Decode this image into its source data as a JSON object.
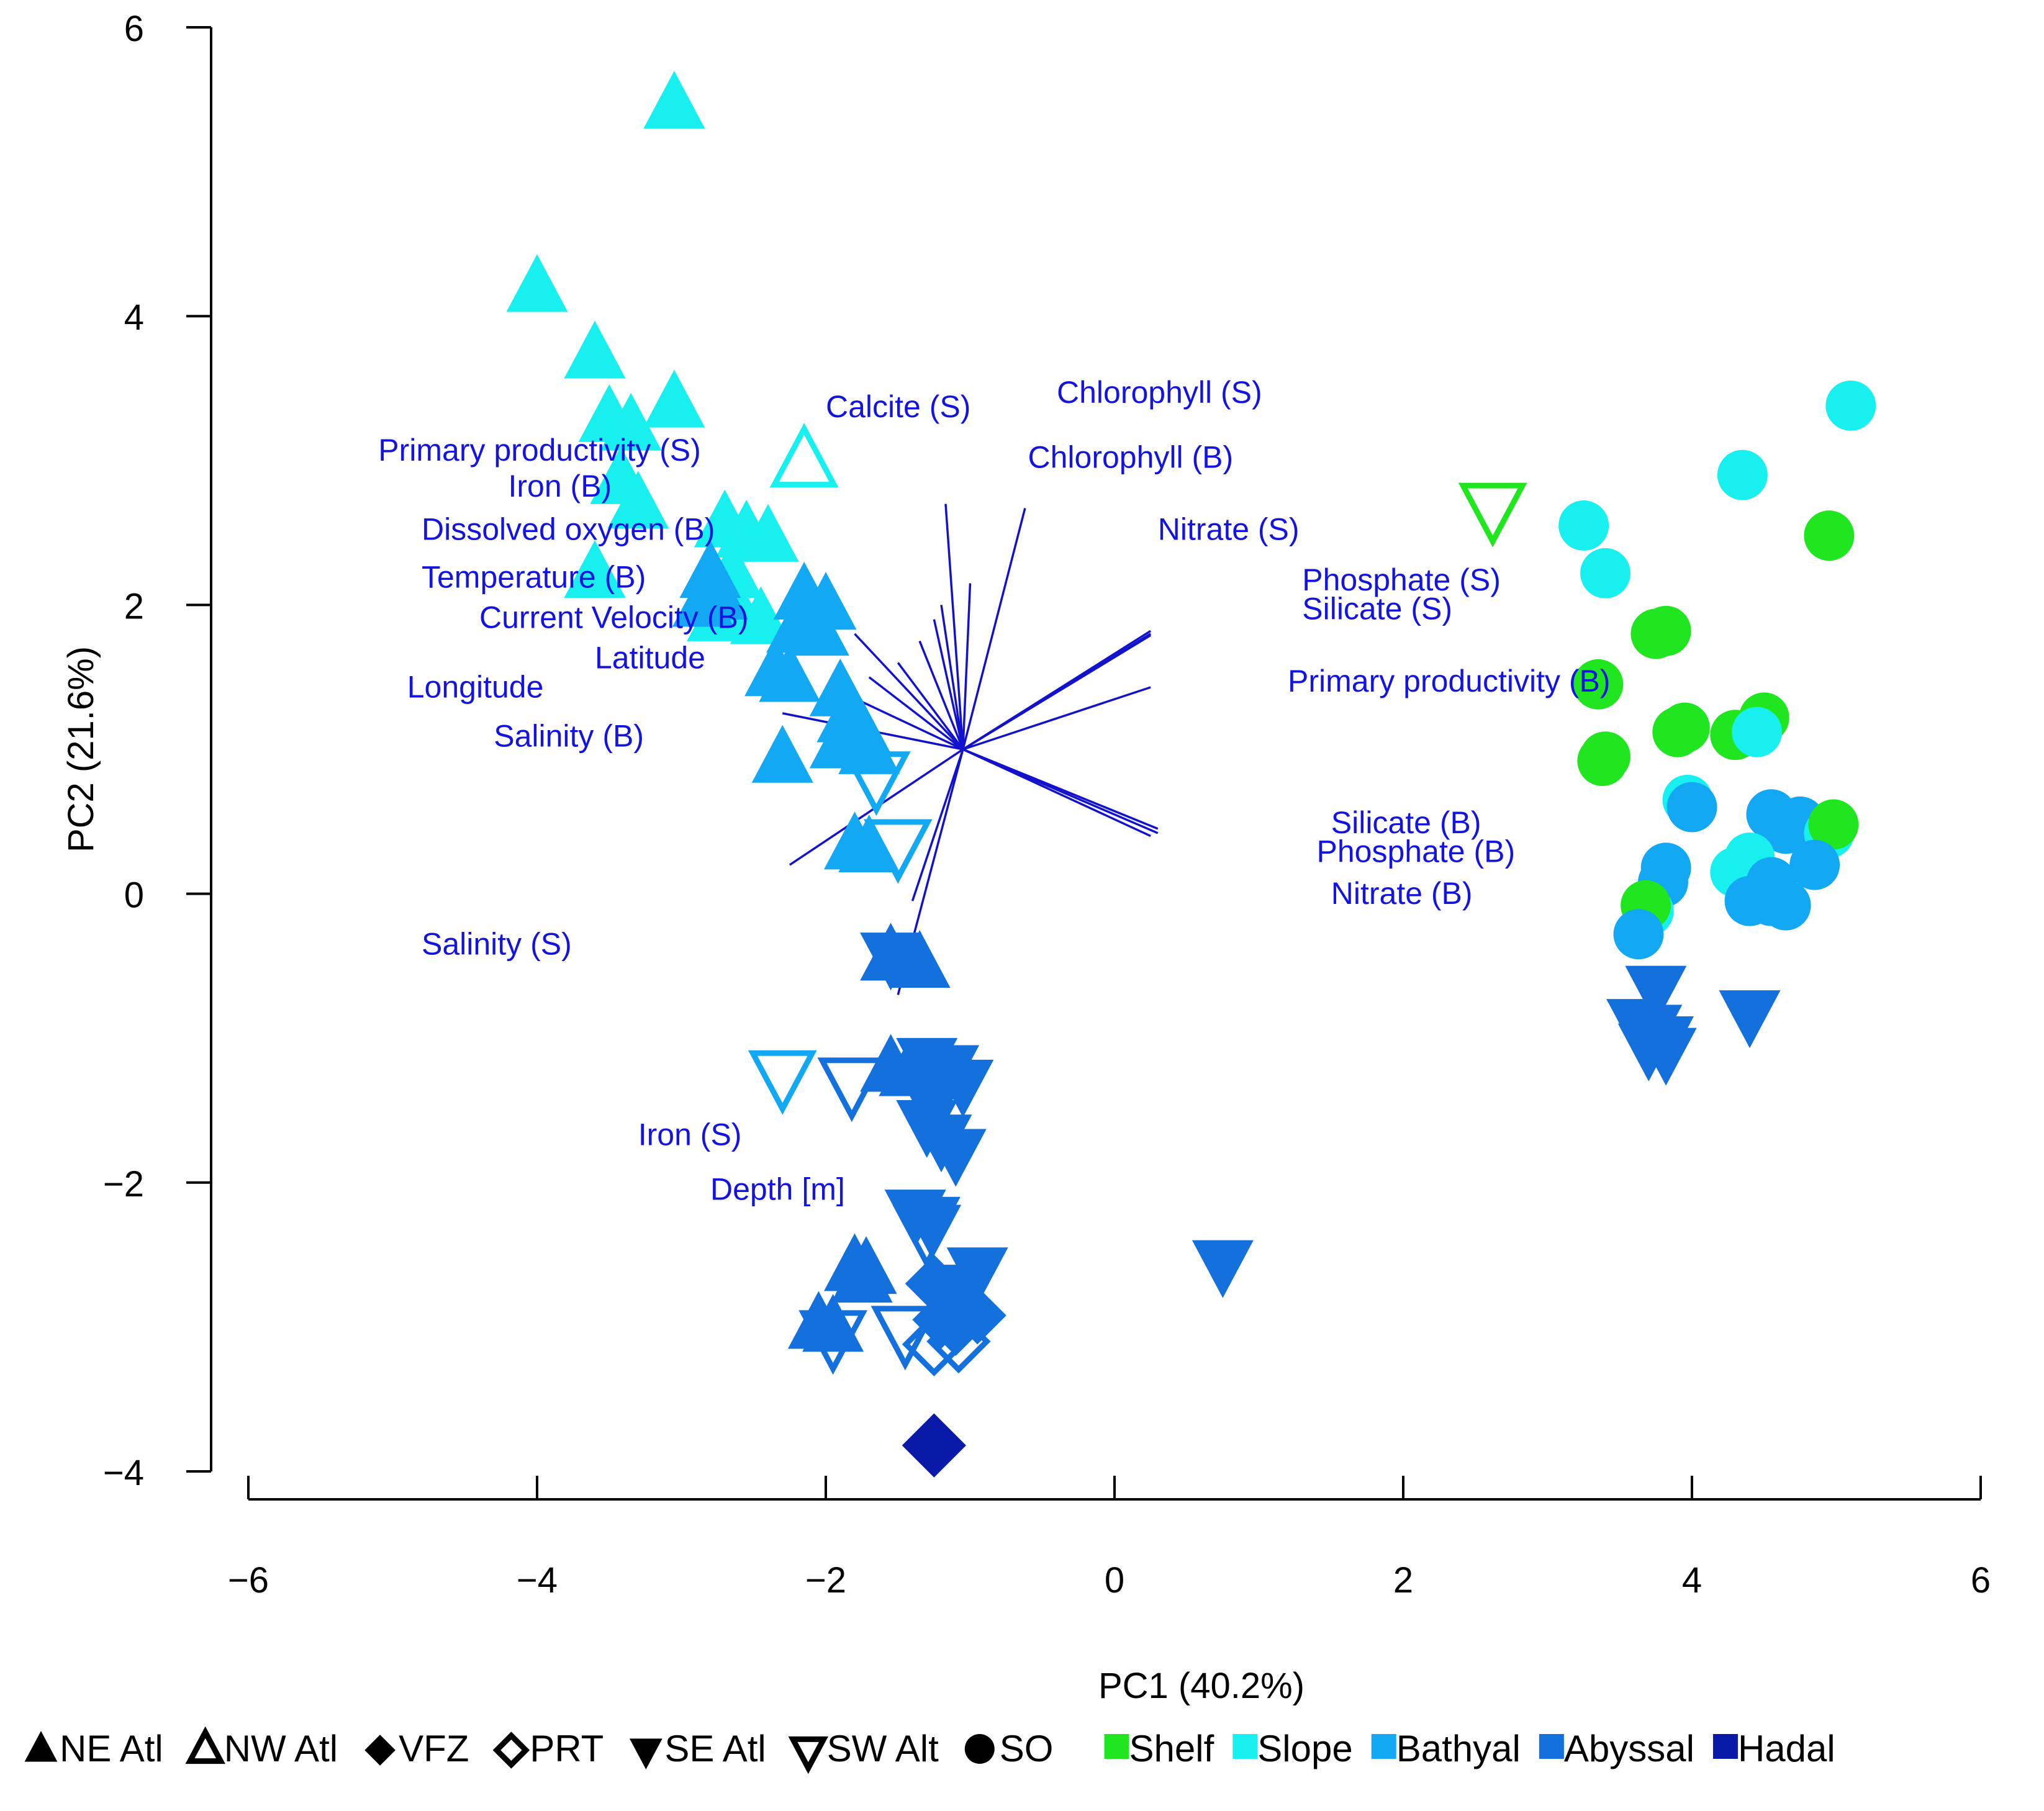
{
  "chart_data": {
    "type": "scatter",
    "title": "",
    "xlabel": "PC1 (40.2%)",
    "ylabel": "PC2 (21.6%)",
    "xlim": [
      -6,
      6
    ],
    "ylim": [
      -4,
      6
    ],
    "x_ticks": [
      -6,
      -4,
      -2,
      0,
      2,
      4,
      6
    ],
    "y_ticks": [
      -4,
      -2,
      0,
      2,
      4,
      6
    ],
    "x_tick_labels": [
      "−6",
      "−4",
      "−2",
      "0",
      "2",
      "4",
      "6"
    ],
    "y_tick_labels": [
      "−4",
      "−2",
      "0",
      "2",
      "4",
      "6"
    ],
    "grid": false,
    "colors": {
      "Shelf": "#1fe61f",
      "Slope": "#18f0f0",
      "Bathyal": "#12a8f4",
      "Abyssal": "#1370dc",
      "Hadal": "#0a1aa8",
      "vector": "#1212cc",
      "vector_label": "#1414e0"
    },
    "vector_origin": [
      -1.05,
      1.0
    ],
    "vectors": [
      {
        "name": "Calcite (S)",
        "end": [
          -1.17,
          2.7
        ],
        "label_at": [
          -2.0,
          3.3
        ]
      },
      {
        "name": "Chlorophyll (S)",
        "end": [
          -0.62,
          2.67
        ],
        "label_at": [
          -0.4,
          3.4
        ]
      },
      {
        "name": "Chlorophyll (B)",
        "end": [
          -1.0,
          2.15
        ],
        "label_at": [
          -0.6,
          2.95
        ]
      },
      {
        "name": "Nitrate (S)",
        "end": [
          0.25,
          1.82
        ],
        "label_at": [
          0.3,
          2.45
        ]
      },
      {
        "name": "Phosphate (S)",
        "end": [
          0.25,
          1.8
        ],
        "label_at": [
          1.3,
          2.1
        ]
      },
      {
        "name": "Silicate (S)",
        "end": [
          0.25,
          1.79
        ],
        "label_at": [
          1.3,
          1.9
        ]
      },
      {
        "name": "Primary productivity (B)",
        "end": [
          0.25,
          1.43
        ],
        "label_at": [
          1.2,
          1.4
        ]
      },
      {
        "name": "Silicate (B)",
        "end": [
          0.3,
          0.45
        ],
        "label_at": [
          1.5,
          0.42
        ]
      },
      {
        "name": "Phosphate (B)",
        "end": [
          0.3,
          0.42
        ],
        "label_at": [
          1.4,
          0.22
        ]
      },
      {
        "name": "Nitrate (B)",
        "end": [
          0.25,
          0.4
        ],
        "label_at": [
          1.5,
          -0.07
        ]
      },
      {
        "name": "Primary productivity (S)",
        "end": [
          -1.25,
          1.9
        ],
        "label_at": [
          -5.1,
          3.0
        ]
      },
      {
        "name": "Iron (B)",
        "end": [
          -1.2,
          2.0
        ],
        "label_at": [
          -4.2,
          2.75
        ]
      },
      {
        "name": "Dissolved oxygen (B)",
        "end": [
          -1.35,
          1.75
        ],
        "label_at": [
          -4.8,
          2.45
        ]
      },
      {
        "name": "Temperature (B)",
        "end": [
          -1.5,
          1.6
        ],
        "label_at": [
          -4.8,
          2.12
        ]
      },
      {
        "name": "Current Velocity (B)",
        "end": [
          -1.8,
          1.8
        ],
        "label_at": [
          -4.4,
          1.84
        ]
      },
      {
        "name": "Latitude",
        "end": [
          -1.7,
          1.5
        ],
        "label_at": [
          -3.6,
          1.56
        ]
      },
      {
        "name": "Longitude",
        "end": [
          -1.9,
          1.4
        ],
        "label_at": [
          -4.9,
          1.36
        ]
      },
      {
        "name": "Salinity (B)",
        "end": [
          -2.3,
          1.25
        ],
        "label_at": [
          -4.3,
          1.02
        ]
      },
      {
        "name": "Salinity (S)",
        "end": [
          -2.25,
          0.2
        ],
        "label_at": [
          -4.8,
          -0.42
        ]
      },
      {
        "name": "Iron (S)",
        "end": [
          -1.5,
          -0.7
        ],
        "label_at": [
          -3.3,
          -1.74
        ]
      },
      {
        "name": "Depth [m]",
        "end": [
          -1.4,
          -0.05
        ],
        "label_at": [
          -2.8,
          -2.12
        ]
      }
    ],
    "series": [
      {
        "name": "NE Atl",
        "marker": "triangle-up",
        "filled": true,
        "points": [
          {
            "x": -3.05,
            "y": 5.45,
            "zone": "Slope"
          },
          {
            "x": -4.0,
            "y": 4.18,
            "zone": "Slope"
          },
          {
            "x": -3.6,
            "y": 3.72,
            "zone": "Slope"
          },
          {
            "x": -3.05,
            "y": 3.38,
            "zone": "Slope"
          },
          {
            "x": -3.5,
            "y": 3.28,
            "zone": "Slope"
          },
          {
            "x": -3.35,
            "y": 3.22,
            "zone": "Slope"
          },
          {
            "x": -3.42,
            "y": 2.85,
            "zone": "Slope"
          },
          {
            "x": -3.3,
            "y": 2.68,
            "zone": "Slope"
          },
          {
            "x": -3.6,
            "y": 2.2,
            "zone": "Slope"
          },
          {
            "x": -2.7,
            "y": 2.55,
            "zone": "Slope"
          },
          {
            "x": -2.55,
            "y": 2.48,
            "zone": "Slope"
          },
          {
            "x": -2.4,
            "y": 2.45,
            "zone": "Slope"
          },
          {
            "x": -2.65,
            "y": 2.2,
            "zone": "Slope"
          },
          {
            "x": -2.6,
            "y": 1.92,
            "zone": "Slope"
          },
          {
            "x": -2.45,
            "y": 1.88,
            "zone": "Slope"
          },
          {
            "x": -2.75,
            "y": 1.9,
            "zone": "Slope"
          },
          {
            "x": -2.8,
            "y": 2.2,
            "zone": "Bathyal"
          },
          {
            "x": -2.85,
            "y": 2.0,
            "zone": "Bathyal"
          },
          {
            "x": -2.75,
            "y": 2.05,
            "zone": "Bathyal"
          },
          {
            "x": -2.15,
            "y": 2.05,
            "zone": "Bathyal"
          },
          {
            "x": -2.0,
            "y": 1.98,
            "zone": "Bathyal"
          },
          {
            "x": -2.2,
            "y": 1.82,
            "zone": "Bathyal"
          },
          {
            "x": -2.05,
            "y": 1.8,
            "zone": "Bathyal"
          },
          {
            "x": -2.35,
            "y": 1.52,
            "zone": "Bathyal"
          },
          {
            "x": -2.25,
            "y": 1.48,
            "zone": "Bathyal"
          },
          {
            "x": -1.9,
            "y": 1.38,
            "zone": "Bathyal"
          },
          {
            "x": -1.85,
            "y": 1.2,
            "zone": "Bathyal"
          },
          {
            "x": -1.75,
            "y": 1.1,
            "zone": "Bathyal"
          },
          {
            "x": -1.9,
            "y": 1.02,
            "zone": "Bathyal"
          },
          {
            "x": -1.7,
            "y": 0.98,
            "zone": "Bathyal"
          },
          {
            "x": -2.3,
            "y": 0.92,
            "zone": "Bathyal"
          },
          {
            "x": -1.8,
            "y": 0.32,
            "zone": "Bathyal"
          },
          {
            "x": -1.7,
            "y": 0.3,
            "zone": "Bathyal"
          },
          {
            "x": -1.55,
            "y": -0.45,
            "zone": "Abyssal"
          },
          {
            "x": -1.35,
            "y": -0.5,
            "zone": "Abyssal"
          },
          {
            "x": -1.55,
            "y": -1.22,
            "zone": "Abyssal"
          },
          {
            "x": -1.42,
            "y": -1.25,
            "zone": "Abyssal"
          },
          {
            "x": -1.8,
            "y": -2.6,
            "zone": "Abyssal"
          },
          {
            "x": -1.72,
            "y": -2.62,
            "zone": "Abyssal"
          },
          {
            "x": -1.75,
            "y": -2.68,
            "zone": "Abyssal"
          },
          {
            "x": -2.05,
            "y": -3.0,
            "zone": "Abyssal"
          },
          {
            "x": -1.95,
            "y": -3.02,
            "zone": "Abyssal"
          }
        ]
      },
      {
        "name": "NW Atl",
        "marker": "triangle-up",
        "filled": false,
        "points": [
          {
            "x": -2.15,
            "y": 2.98,
            "zone": "Slope"
          }
        ]
      },
      {
        "name": "VFZ",
        "marker": "diamond",
        "filled": true,
        "points": [
          {
            "x": -1.25,
            "y": -2.7,
            "zone": "Abyssal"
          },
          {
            "x": -1.15,
            "y": -2.8,
            "zone": "Abyssal"
          },
          {
            "x": -1.05,
            "y": -2.85,
            "zone": "Abyssal"
          },
          {
            "x": -0.95,
            "y": -2.92,
            "zone": "Abyssal"
          },
          {
            "x": -1.2,
            "y": -2.95,
            "zone": "Abyssal"
          },
          {
            "x": -1.1,
            "y": -3.0,
            "zone": "Abyssal"
          },
          {
            "x": -1.25,
            "y": -3.82,
            "zone": "Hadal"
          }
        ]
      },
      {
        "name": "PRT",
        "marker": "diamond",
        "filled": false,
        "points": [
          {
            "x": -1.25,
            "y": -3.12,
            "zone": "Abyssal"
          },
          {
            "x": -1.08,
            "y": -3.1,
            "zone": "Abyssal"
          },
          {
            "x": -1.25,
            "y": -3.82,
            "zone": "Hadal"
          }
        ]
      },
      {
        "name": "SE Atl",
        "marker": "triangle-down",
        "filled": true,
        "points": [
          {
            "x": -1.55,
            "y": -0.42,
            "zone": "Abyssal"
          },
          {
            "x": -1.3,
            "y": -1.15,
            "zone": "Abyssal"
          },
          {
            "x": -1.15,
            "y": -1.2,
            "zone": "Abyssal"
          },
          {
            "x": -1.35,
            "y": -1.28,
            "zone": "Abyssal"
          },
          {
            "x": -1.05,
            "y": -1.3,
            "zone": "Abyssal"
          },
          {
            "x": -1.25,
            "y": -1.42,
            "zone": "Abyssal"
          },
          {
            "x": -1.3,
            "y": -1.58,
            "zone": "Abyssal"
          },
          {
            "x": -1.2,
            "y": -1.68,
            "zone": "Abyssal"
          },
          {
            "x": -1.1,
            "y": -1.78,
            "zone": "Abyssal"
          },
          {
            "x": -1.38,
            "y": -2.2,
            "zone": "Abyssal"
          },
          {
            "x": -1.28,
            "y": -2.25,
            "zone": "Abyssal"
          },
          {
            "x": -0.95,
            "y": -2.6,
            "zone": "Abyssal"
          },
          {
            "x": -1.05,
            "y": -2.72,
            "zone": "Abyssal"
          },
          {
            "x": 0.75,
            "y": -2.55,
            "zone": "Abyssal"
          },
          {
            "x": 3.75,
            "y": -0.65,
            "zone": "Abyssal"
          },
          {
            "x": 3.62,
            "y": -0.88,
            "zone": "Abyssal"
          },
          {
            "x": 3.72,
            "y": -0.92,
            "zone": "Abyssal"
          },
          {
            "x": 3.8,
            "y": -1.0,
            "zone": "Abyssal"
          },
          {
            "x": 3.7,
            "y": -1.05,
            "zone": "Abyssal"
          },
          {
            "x": 3.82,
            "y": -1.08,
            "zone": "Abyssal"
          },
          {
            "x": 4.4,
            "y": -0.82,
            "zone": "Abyssal"
          }
        ]
      },
      {
        "name": "SW Alt",
        "marker": "triangle-down",
        "filled": false,
        "points": [
          {
            "x": 2.62,
            "y": 2.68,
            "zone": "Shelf"
          },
          {
            "x": -1.65,
            "y": 0.82,
            "zone": "Bathyal"
          },
          {
            "x": -1.5,
            "y": 0.35,
            "zone": "Bathyal"
          },
          {
            "x": -2.3,
            "y": -1.25,
            "zone": "Bathyal"
          },
          {
            "x": -1.82,
            "y": -1.3,
            "zone": "Abyssal"
          },
          {
            "x": -1.3,
            "y": -2.32,
            "zone": "Abyssal"
          },
          {
            "x": -1.95,
            "y": -3.05,
            "zone": "Abyssal"
          },
          {
            "x": -1.45,
            "y": -3.02,
            "zone": "Abyssal"
          }
        ]
      },
      {
        "name": "SO",
        "marker": "circle",
        "filled": true,
        "points": [
          {
            "x": 5.1,
            "y": 3.38,
            "zone": "Slope"
          },
          {
            "x": 4.35,
            "y": 2.9,
            "zone": "Slope"
          },
          {
            "x": 3.25,
            "y": 2.55,
            "zone": "Slope"
          },
          {
            "x": 3.4,
            "y": 2.22,
            "zone": "Slope"
          },
          {
            "x": 4.95,
            "y": 2.48,
            "zone": "Shelf"
          },
          {
            "x": 3.75,
            "y": 1.8,
            "zone": "Shelf"
          },
          {
            "x": 3.82,
            "y": 1.82,
            "zone": "Shelf"
          },
          {
            "x": 3.35,
            "y": 1.45,
            "zone": "Shelf"
          },
          {
            "x": 3.9,
            "y": 1.12,
            "zone": "Shelf"
          },
          {
            "x": 3.95,
            "y": 1.15,
            "zone": "Shelf"
          },
          {
            "x": 4.3,
            "y": 1.1,
            "zone": "Shelf"
          },
          {
            "x": 4.5,
            "y": 1.22,
            "zone": "Shelf"
          },
          {
            "x": 3.4,
            "y": 0.95,
            "zone": "Shelf"
          },
          {
            "x": 3.38,
            "y": 0.92,
            "zone": "Shelf"
          },
          {
            "x": 4.45,
            "y": 1.12,
            "zone": "Slope"
          },
          {
            "x": 3.97,
            "y": 0.65,
            "zone": "Slope"
          },
          {
            "x": 4.0,
            "y": 0.6,
            "zone": "Bathyal"
          },
          {
            "x": 4.55,
            "y": 0.55,
            "zone": "Bathyal"
          },
          {
            "x": 4.65,
            "y": 0.45,
            "zone": "Bathyal"
          },
          {
            "x": 4.75,
            "y": 0.5,
            "zone": "Bathyal"
          },
          {
            "x": 4.95,
            "y": 0.42,
            "zone": "Slope"
          },
          {
            "x": 4.98,
            "y": 0.48,
            "zone": "Shelf"
          },
          {
            "x": 4.85,
            "y": 0.2,
            "zone": "Bathyal"
          },
          {
            "x": 4.3,
            "y": 0.15,
            "zone": "Slope"
          },
          {
            "x": 4.4,
            "y": 0.25,
            "zone": "Slope"
          },
          {
            "x": 4.55,
            "y": 0.08,
            "zone": "Bathyal"
          },
          {
            "x": 4.4,
            "y": -0.05,
            "zone": "Bathyal"
          },
          {
            "x": 4.55,
            "y": -0.05,
            "zone": "Bathyal"
          },
          {
            "x": 4.65,
            "y": -0.08,
            "zone": "Bathyal"
          },
          {
            "x": 3.82,
            "y": 0.18,
            "zone": "Bathyal"
          },
          {
            "x": 3.8,
            "y": 0.08,
            "zone": "Bathyal"
          },
          {
            "x": 3.7,
            "y": -0.12,
            "zone": "Slope"
          },
          {
            "x": 3.68,
            "y": -0.08,
            "zone": "Shelf"
          },
          {
            "x": 3.63,
            "y": -0.28,
            "zone": "Bathyal"
          }
        ]
      }
    ],
    "legend": {
      "placement": "bottom",
      "markers": [
        {
          "label": "NE Atl",
          "marker": "triangle-up",
          "filled": true
        },
        {
          "label": "NW Atl",
          "marker": "triangle-up",
          "filled": false
        },
        {
          "label": "VFZ",
          "marker": "diamond",
          "filled": true
        },
        {
          "label": "PRT",
          "marker": "diamond",
          "filled": false
        },
        {
          "label": "SE Atl",
          "marker": "triangle-down",
          "filled": true
        },
        {
          "label": "SW Alt",
          "marker": "triangle-down",
          "filled": false
        },
        {
          "label": "SO",
          "marker": "circle",
          "filled": true
        }
      ],
      "zones": [
        {
          "label": "Shelf"
        },
        {
          "label": "Slope"
        },
        {
          "label": "Bathyal"
        },
        {
          "label": "Abyssal"
        },
        {
          "label": "Hadal"
        }
      ]
    }
  }
}
